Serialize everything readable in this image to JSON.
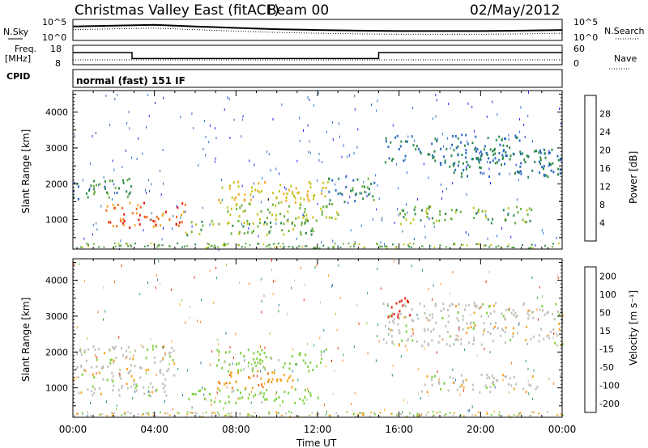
{
  "header": {
    "title": "Christmas Valley East (fitACF)",
    "beam": "Beam 00",
    "date": "02/May/2012"
  },
  "noise_panel": {
    "left_label": "N.Sky",
    "right_label": "N.Search",
    "y_ticks": [
      "10^5",
      "10^0"
    ]
  },
  "freq_panel": {
    "left_label_1": "Freq.",
    "left_label_2": "[MHz]",
    "right_label": "Nave",
    "left_ticks": [
      "18",
      "8"
    ],
    "right_ticks": [
      "60",
      "0"
    ]
  },
  "cpid": {
    "label": "CPID",
    "text": "normal (fast) 151 IF"
  },
  "range_axis": {
    "label": "Slant Range [km]",
    "ticks": [
      "1000",
      "2000",
      "3000",
      "4000"
    ]
  },
  "time_axis": {
    "label": "Time UT",
    "ticks": [
      "00:00",
      "04:00",
      "08:00",
      "12:00",
      "16:00",
      "20:00",
      "00:00"
    ]
  },
  "power_scale": {
    "label": "Power [dB]",
    "ticks": [
      "4",
      "8",
      "12",
      "16",
      "20",
      "24",
      "28"
    ],
    "colors": [
      "#1a22e8",
      "#2a6ac0",
      "#2c8a4a",
      "#6ab040",
      "#c4c41c",
      "#f5a623",
      "#f06a18",
      "#e41a0e"
    ]
  },
  "velocity_scale": {
    "label": "Velocity [m s⁻¹]",
    "ticks": [
      "200",
      "100",
      "50",
      "15",
      "-15",
      "-50",
      "-100",
      "-200"
    ],
    "colors": [
      "#2030c8",
      "#2a7aa0",
      "#2a9a50",
      "#80d040",
      "#c0c0b8",
      "#f5a623",
      "#f07a20",
      "#e8200e"
    ]
  },
  "chart_data": [
    {
      "type": "line",
      "title": "Christmas Valley East (fitACF)",
      "series": [
        {
          "name": "N.Sky",
          "x": [
            0,
            2,
            4,
            6,
            8,
            10,
            12,
            14,
            16,
            18,
            20,
            22,
            24
          ],
          "values": [
            3000,
            5000,
            8000,
            3000,
            1200,
            500,
            300,
            200,
            150,
            150,
            150,
            200,
            300
          ]
        }
      ],
      "ylim": [
        1,
        100000
      ],
      "yscale": "log"
    },
    {
      "type": "line",
      "series": [
        {
          "name": "Freq. [MHz]",
          "x": [
            0,
            2.9,
            2.9,
            15.0,
            15.0,
            24
          ],
          "values": [
            14.5,
            14.5,
            10.8,
            10.8,
            14.5,
            14.5
          ]
        }
      ],
      "ylim": [
        8,
        18
      ]
    },
    {
      "type": "heatmap",
      "xlabel": "Time UT",
      "ylabel": "Slant Range [km]",
      "xlim": [
        0,
        24
      ],
      "ylim": [
        180,
        4600
      ],
      "colorbar_label": "Power [dB]",
      "features": [
        {
          "time": [
            0,
            3.0
          ],
          "range": [
            1600,
            2200
          ],
          "power_db": 10
        },
        {
          "time": [
            1.5,
            5.5
          ],
          "range": [
            800,
            1500
          ],
          "power_db": 26
        },
        {
          "time": [
            5.5,
            12
          ],
          "range": [
            600,
            1000
          ],
          "power_db": 14
        },
        {
          "time": [
            7,
            12.5
          ],
          "range": [
            1500,
            2100
          ],
          "power_db": 20
        },
        {
          "time": [
            7.5,
            13
          ],
          "range": [
            900,
            1500
          ],
          "power_db": 16
        },
        {
          "time": [
            12.5,
            14.8
          ],
          "range": [
            1500,
            2200
          ],
          "power_db": 10
        },
        {
          "time": [
            15.2,
            22
          ],
          "range": [
            2600,
            3400
          ],
          "power_db": 8
        },
        {
          "time": [
            16,
            22.5
          ],
          "range": [
            900,
            1400
          ],
          "power_db": 14
        },
        {
          "time": [
            18,
            24
          ],
          "range": [
            2200,
            3000
          ],
          "power_db": 8
        }
      ]
    },
    {
      "type": "heatmap",
      "xlabel": "Time UT",
      "ylabel": "Slant Range [km]",
      "xlim": [
        0,
        24
      ],
      "ylim": [
        180,
        4600
      ],
      "colorbar_label": "Velocity [m s⁻¹]",
      "features": [
        {
          "time": [
            0,
            5
          ],
          "range": [
            800,
            2200
          ],
          "velocity_ms": 0
        },
        {
          "time": [
            5.5,
            12
          ],
          "range": [
            600,
            1000
          ],
          "velocity_ms": 30
        },
        {
          "time": [
            7,
            11
          ],
          "range": [
            1000,
            1500
          ],
          "velocity_ms": -40
        },
        {
          "time": [
            7,
            12.5
          ],
          "range": [
            1500,
            2100
          ],
          "velocity_ms": 30
        },
        {
          "time": [
            15.2,
            16.5
          ],
          "range": [
            3000,
            3600
          ],
          "velocity_ms": -200
        },
        {
          "time": [
            15.2,
            24
          ],
          "range": [
            2200,
            3400
          ],
          "velocity_ms": 0
        },
        {
          "time": [
            17,
            23
          ],
          "range": [
            900,
            1400
          ],
          "velocity_ms": 0
        }
      ]
    }
  ]
}
